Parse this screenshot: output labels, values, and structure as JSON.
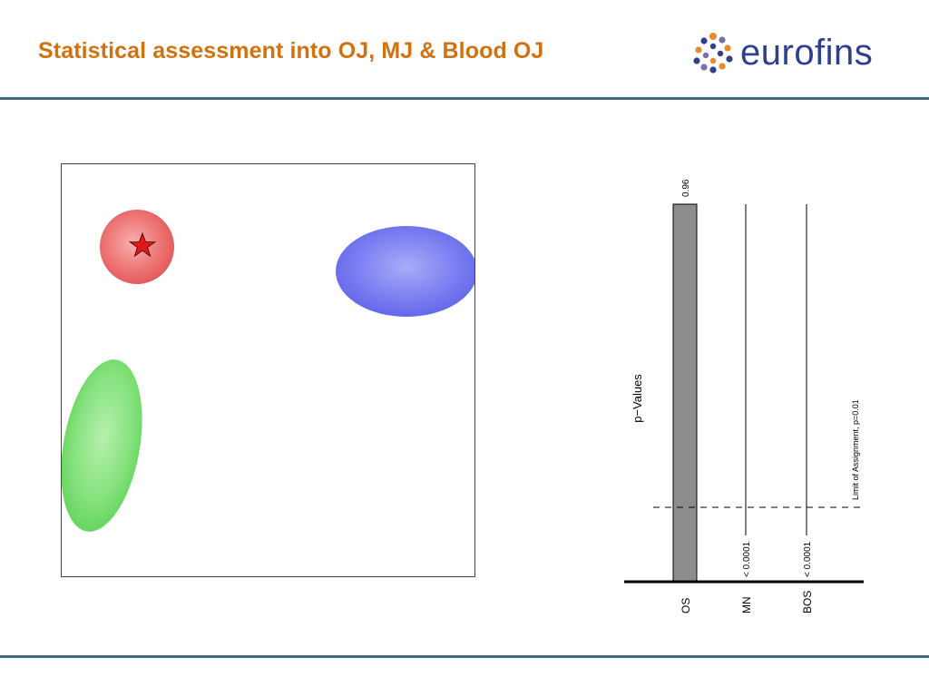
{
  "header": {
    "title": "Statistical assessment into OJ, MJ & Blood OJ",
    "logo_text": "eurofins",
    "logo_name": "eurofins-logo",
    "rule_color": "#3c6c85"
  },
  "chart_data": [
    {
      "type": "scatter",
      "title": "",
      "grid": false,
      "groups": [
        {
          "color": "#ee6a6a",
          "shape": "circle-ellipse",
          "marker": "star-icon"
        },
        {
          "color": "#6f73f0",
          "shape": "ellipse"
        },
        {
          "color": "#7ee077",
          "shape": "ellipse"
        }
      ]
    },
    {
      "type": "bar",
      "ylabel": "p−Values",
      "categories": [
        "OS",
        "MN",
        "BOS"
      ],
      "values": [
        0.96,
        0.0001,
        0.0001
      ],
      "value_labels": [
        "0.96",
        "< 0.0001",
        "< 0.0001"
      ],
      "bar_color": "#8c8c8c",
      "threshold": {
        "value": 0.01,
        "label": "Limit of Assignment, p=0.01"
      }
    }
  ]
}
